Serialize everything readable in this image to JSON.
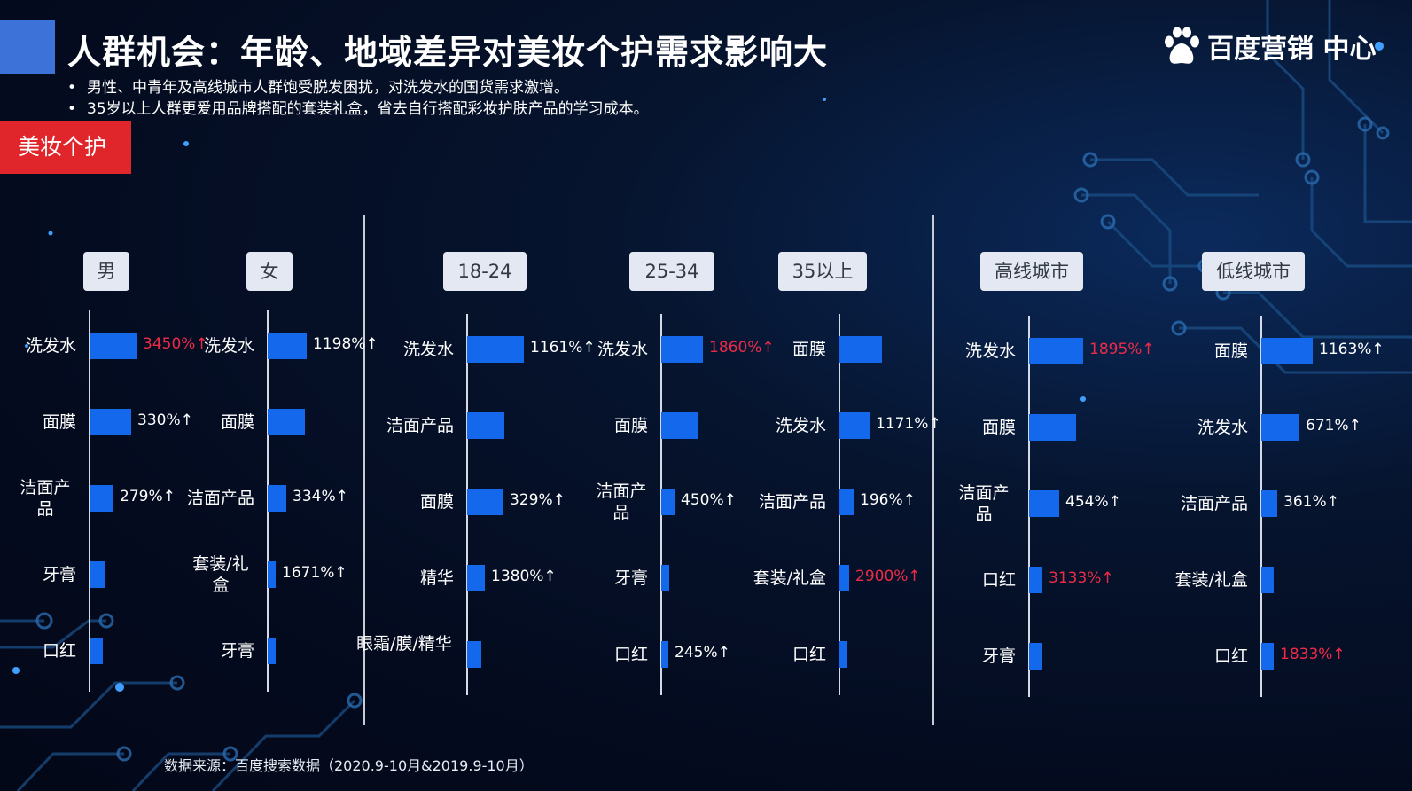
{
  "page": {
    "title": "人群机会：年龄、地域差异对美妆个护需求影响大",
    "bullets": [
      "男性、中青年及高线城市人群饱受脱发困扰，对洗发水的国货需求激增。",
      "35岁以上人群更爱用品牌搭配的套装礼盒，省去自行搭配彩妆护肤产品的学习成本。"
    ],
    "category_tag": "美妆个护",
    "logo_text": "百度营销 中心",
    "logo_icon": "baidu-paw-icon",
    "source": "数据来源：百度搜索数据（2020.9-10月&2019.9-10月）",
    "colors": {
      "bar": "#1468ec",
      "highlight": "#ee2b47",
      "tag": "#e0252b",
      "accent": "#3d72d8"
    }
  },
  "chart_data": [
    {
      "type": "bar",
      "orientation": "horizontal",
      "title": "男",
      "items": [
        {
          "label": "洗发水",
          "value": "3450%↑",
          "highlight": true,
          "bar": 0.53
        },
        {
          "label": "面膜",
          "value": "330%↑",
          "highlight": false,
          "bar": 0.47
        },
        {
          "label": "洁面产品",
          "value": "279%↑",
          "highlight": false,
          "bar": 0.27
        },
        {
          "label": "牙膏",
          "value": "",
          "highlight": false,
          "bar": 0.17
        },
        {
          "label": "口红",
          "value": "",
          "highlight": false,
          "bar": 0.15
        }
      ]
    },
    {
      "type": "bar",
      "orientation": "horizontal",
      "title": "女",
      "items": [
        {
          "label": "洗发水",
          "value": "1198%↑",
          "highlight": false,
          "bar": 0.44
        },
        {
          "label": "面膜",
          "value": "",
          "highlight": false,
          "bar": 0.42
        },
        {
          "label": "洁面产品",
          "value": "334%↑",
          "highlight": false,
          "bar": 0.21
        },
        {
          "label": "套装/礼盒",
          "value": "1671%↑",
          "highlight": false,
          "bar": 0.09
        },
        {
          "label": "牙膏",
          "value": "",
          "highlight": false,
          "bar": 0.09
        }
      ]
    },
    {
      "type": "bar",
      "orientation": "horizontal",
      "title": "18-24",
      "items": [
        {
          "label": "洗发水",
          "value": "1161%↑",
          "highlight": false,
          "bar": 0.64
        },
        {
          "label": "洁面产品",
          "value": "",
          "highlight": false,
          "bar": 0.42
        },
        {
          "label": "面膜",
          "value": "329%↑",
          "highlight": false,
          "bar": 0.41
        },
        {
          "label": "精华",
          "value": "1380%↑",
          "highlight": false,
          "bar": 0.2
        },
        {
          "label": "眼霜/膜/精华",
          "value": "",
          "highlight": false,
          "bar": 0.16
        }
      ]
    },
    {
      "type": "bar",
      "orientation": "horizontal",
      "title": "25-34",
      "items": [
        {
          "label": "洗发水",
          "value": "1860%↑",
          "highlight": true,
          "bar": 0.47
        },
        {
          "label": "面膜",
          "value": "",
          "highlight": false,
          "bar": 0.41
        },
        {
          "label": "洁面产品",
          "value": "450%↑",
          "highlight": false,
          "bar": 0.15
        },
        {
          "label": "牙膏",
          "value": "",
          "highlight": false,
          "bar": 0.09
        },
        {
          "label": "口红",
          "value": "245%↑",
          "highlight": false,
          "bar": 0.08
        }
      ]
    },
    {
      "type": "bar",
      "orientation": "horizontal",
      "title": "35以上",
      "items": [
        {
          "label": "面膜",
          "value": "",
          "highlight": false,
          "bar": 0.48
        },
        {
          "label": "洗发水",
          "value": "1171%↑",
          "highlight": false,
          "bar": 0.34
        },
        {
          "label": "洁面产品",
          "value": "196%↑",
          "highlight": false,
          "bar": 0.16
        },
        {
          "label": "套装/礼盒",
          "value": "2900%↑",
          "highlight": true,
          "bar": 0.11
        },
        {
          "label": "口红",
          "value": "",
          "highlight": false,
          "bar": 0.09
        }
      ]
    },
    {
      "type": "bar",
      "orientation": "horizontal",
      "title": "高线城市",
      "items": [
        {
          "label": "洗发水",
          "value": "1895%↑",
          "highlight": true,
          "bar": 0.61
        },
        {
          "label": "面膜",
          "value": "",
          "highlight": false,
          "bar": 0.53
        },
        {
          "label": "洁面产品",
          "value": "454%↑",
          "highlight": false,
          "bar": 0.34
        },
        {
          "label": "口红",
          "value": "3133%↑",
          "highlight": true,
          "bar": 0.15
        },
        {
          "label": "牙膏",
          "value": "",
          "highlight": false,
          "bar": 0.15
        }
      ]
    },
    {
      "type": "bar",
      "orientation": "horizontal",
      "title": "低线城市",
      "items": [
        {
          "label": "面膜",
          "value": "1163%↑",
          "highlight": false,
          "bar": 0.58
        },
        {
          "label": "洗发水",
          "value": "671%↑",
          "highlight": false,
          "bar": 0.43
        },
        {
          "label": "洁面产品",
          "value": "361%↑",
          "highlight": false,
          "bar": 0.18
        },
        {
          "label": "套装/礼盒",
          "value": "",
          "highlight": false,
          "bar": 0.14
        },
        {
          "label": "口红",
          "value": "1833%↑",
          "highlight": true,
          "bar": 0.14
        }
      ]
    }
  ]
}
